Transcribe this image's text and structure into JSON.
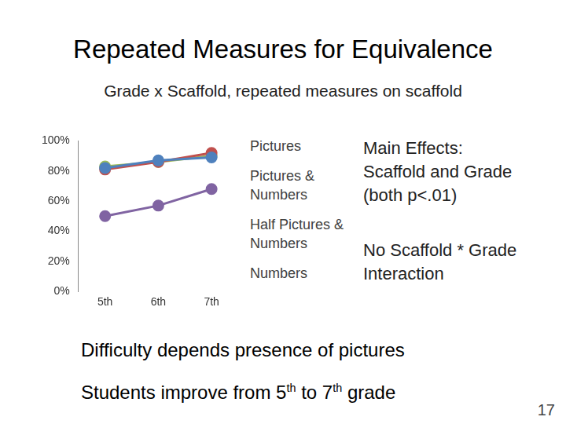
{
  "title": "Repeated Measures for Equivalence",
  "subtitle": "Grade x Scaffold, repeated measures on scaffold",
  "chart_data": {
    "type": "line",
    "categories": [
      "5th",
      "6th",
      "7th"
    ],
    "series": [
      {
        "name": "Pictures",
        "color": "#4f81bd",
        "values": [
          82,
          87,
          89
        ]
      },
      {
        "name": "Pictures & Numbers",
        "color": "#c0504d",
        "values": [
          81,
          86,
          92
        ]
      },
      {
        "name": "Half Pictures & Numbers",
        "color": "#9bbb59",
        "values": [
          83,
          86,
          90
        ]
      },
      {
        "name": "Numbers",
        "color": "#8064a2",
        "values": [
          50,
          57,
          68
        ]
      }
    ],
    "ylim": [
      0,
      100
    ],
    "yticks": [
      {
        "value": 0,
        "label": "0%"
      },
      {
        "value": 20,
        "label": "20%"
      },
      {
        "value": 40,
        "label": "40%"
      },
      {
        "value": 60,
        "label": "60%"
      },
      {
        "value": 80,
        "label": "80%"
      },
      {
        "value": 100,
        "label": "100%"
      }
    ],
    "grid": false,
    "legend": "right",
    "marker": "circle"
  },
  "effects": [
    [
      "Main Effects:",
      "Scaffold and Grade",
      "(both p<.01)"
    ],
    [
      "No Scaffold * Grade",
      "Interaction"
    ]
  ],
  "conclusions": [
    "Difficulty depends presence of pictures",
    "Students improve from 5th to 7th grade"
  ],
  "page_number": "17"
}
